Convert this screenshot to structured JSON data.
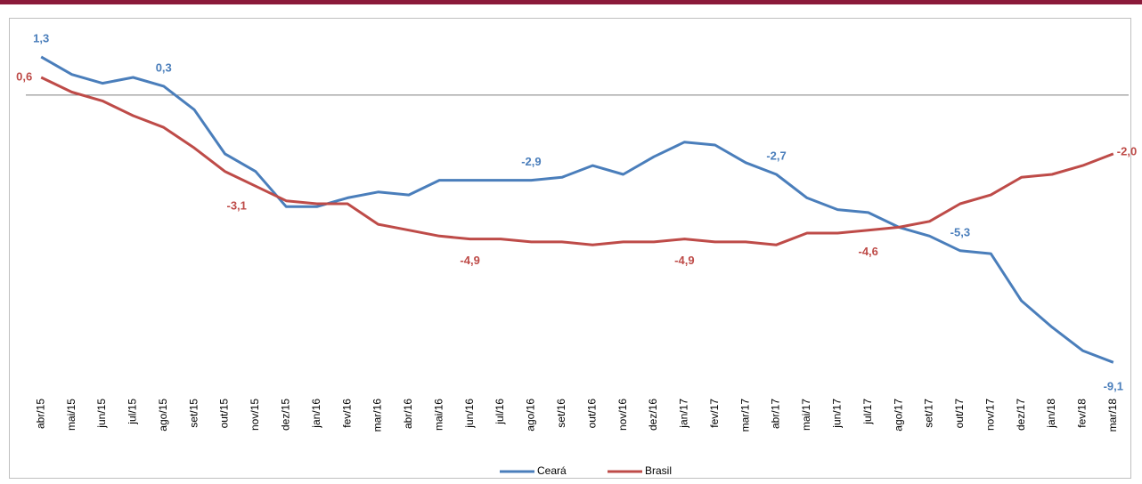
{
  "chart_data": {
    "type": "line",
    "categories": [
      "abr/15",
      "mai/15",
      "jun/15",
      "jul/15",
      "ago/15",
      "set/15",
      "out/15",
      "nov/15",
      "dez/15",
      "jan/16",
      "fev/16",
      "mar/16",
      "abr/16",
      "mai/16",
      "jun/16",
      "jul/16",
      "ago/16",
      "set/16",
      "out/16",
      "nov/16",
      "dez/16",
      "jan/17",
      "fev/17",
      "mar/17",
      "abr/17",
      "mai/17",
      "jun/17",
      "jul/17",
      "ago/17",
      "set/17",
      "out/17",
      "nov/17",
      "dez/17",
      "jan/18",
      "fev/18",
      "mar/18"
    ],
    "series": [
      {
        "name": "Ceará",
        "color": "#4a7ebb",
        "values": [
          1.3,
          0.7,
          0.4,
          0.6,
          0.3,
          -0.5,
          -2.0,
          -2.6,
          -3.8,
          -3.8,
          -3.5,
          -3.3,
          -3.4,
          -2.9,
          -2.9,
          -2.9,
          -2.9,
          -2.8,
          -2.4,
          -2.7,
          -2.1,
          -1.6,
          -1.7,
          -2.3,
          -2.7,
          -3.5,
          -3.9,
          -4.0,
          -4.5,
          -4.8,
          -5.3,
          -5.4,
          -7.0,
          -7.9,
          -8.7,
          -9.1
        ],
        "value_labels": [
          "1,3",
          null,
          null,
          null,
          "0,3",
          null,
          null,
          null,
          null,
          null,
          null,
          null,
          null,
          null,
          null,
          null,
          "-2,9",
          null,
          null,
          null,
          null,
          null,
          null,
          null,
          "-2,7",
          null,
          null,
          null,
          null,
          null,
          "-5,3",
          null,
          null,
          null,
          null,
          "-9,1"
        ]
      },
      {
        "name": "Brasil",
        "color": "#be4b48",
        "values": [
          0.6,
          0.1,
          -0.2,
          -0.7,
          -1.1,
          -1.8,
          -2.6,
          -3.1,
          -3.6,
          -3.7,
          -3.7,
          -4.4,
          -4.6,
          -4.8,
          -4.9,
          -4.9,
          -5.0,
          -5.0,
          -5.1,
          -5.0,
          -5.0,
          -4.9,
          -5.0,
          -5.0,
          -5.1,
          -4.7,
          -4.7,
          -4.6,
          -4.5,
          -4.3,
          -3.7,
          -3.4,
          -2.8,
          -2.7,
          -2.4,
          -2.0
        ],
        "value_labels": [
          "0,6",
          null,
          null,
          null,
          null,
          null,
          null,
          "-3,1",
          null,
          null,
          null,
          null,
          null,
          null,
          "-4,9",
          null,
          null,
          null,
          null,
          null,
          null,
          "-4,9",
          null,
          null,
          null,
          null,
          null,
          "-4,6",
          null,
          null,
          null,
          null,
          null,
          null,
          null,
          "-2,0"
        ]
      }
    ],
    "ylim": [
      -10,
      2.6
    ]
  }
}
